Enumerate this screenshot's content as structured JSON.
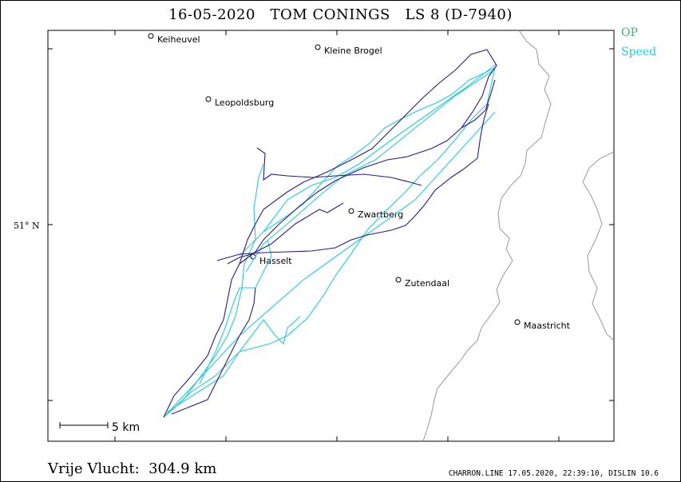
{
  "title": "16-05-2020   TOM CONINGS   LS 8 (D-7940)",
  "legend": {
    "op_label": "OP",
    "speed_label": "Speed",
    "op_color": "#3cb371",
    "speed_color": "#22ccdd"
  },
  "latitude_label": "51° N",
  "scale_label": "5  km",
  "places": [
    {
      "name": "Keiheuvel"
    },
    {
      "name": "Kleine Brogel"
    },
    {
      "name": "Leopoldsburg"
    },
    {
      "name": "Zwartberg"
    },
    {
      "name": "Hasselt"
    },
    {
      "name": "Zutendaal"
    },
    {
      "name": "Maastricht"
    }
  ],
  "distance_text": "Vrije Vlucht:  304.9 km",
  "footer_text": "CHARRON.LINE 17.05.2020, 22:39:10, DISLIN 10.6",
  "colors": {
    "track_dark": "#2a1a8c",
    "track_light": "#22ccdd",
    "border": "#999999"
  }
}
